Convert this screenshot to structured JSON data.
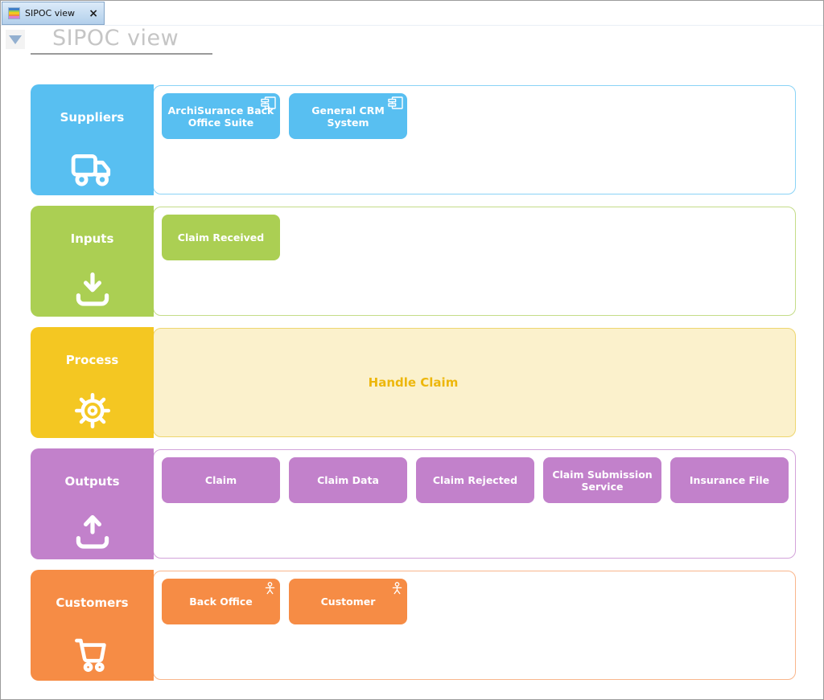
{
  "tab": {
    "title": "SIPOC view",
    "close_glyph": "×",
    "icon_stripes": [
      "#3f7fc4",
      "#9ccb4f",
      "#f2c71f",
      "#f08a3e",
      "#d97fd0"
    ]
  },
  "page": {
    "title": "SIPOC view"
  },
  "bands": [
    {
      "id": "suppliers",
      "label": "Suppliers",
      "icon": "truck-icon",
      "color": "#58BFF1",
      "border": "#8AD3F6",
      "items": [
        {
          "label": "ArchiSurance Back Office Suite",
          "badge": "component"
        },
        {
          "label": "General CRM System",
          "badge": "component"
        }
      ]
    },
    {
      "id": "inputs",
      "label": "Inputs",
      "icon": "download-tray-icon",
      "color": "#ABCF53",
      "border": "#C4DC88",
      "items": [
        {
          "label": "Claim Received"
        }
      ]
    },
    {
      "id": "process",
      "label": "Process",
      "icon": "gear-icon",
      "color": "#F4C722",
      "border": "#EED66F",
      "fill": "#FBF1CC",
      "text_color": "#EDB70C",
      "center_label": "Handle Claim",
      "items": []
    },
    {
      "id": "outputs",
      "label": "Outputs",
      "icon": "upload-tray-icon",
      "color": "#C281CB",
      "border": "#D3A3DA",
      "items": [
        {
          "label": "Claim"
        },
        {
          "label": "Claim Data"
        },
        {
          "label": "Claim Rejected"
        },
        {
          "label": "Claim Submission Service"
        },
        {
          "label": "Insurance File"
        }
      ]
    },
    {
      "id": "customers",
      "label": "Customers",
      "icon": "cart-icon",
      "color": "#F68C45",
      "border": "#F9B68C",
      "items": [
        {
          "label": "Back Office",
          "badge": "actor"
        },
        {
          "label": "Customer",
          "badge": "actor"
        }
      ]
    }
  ]
}
